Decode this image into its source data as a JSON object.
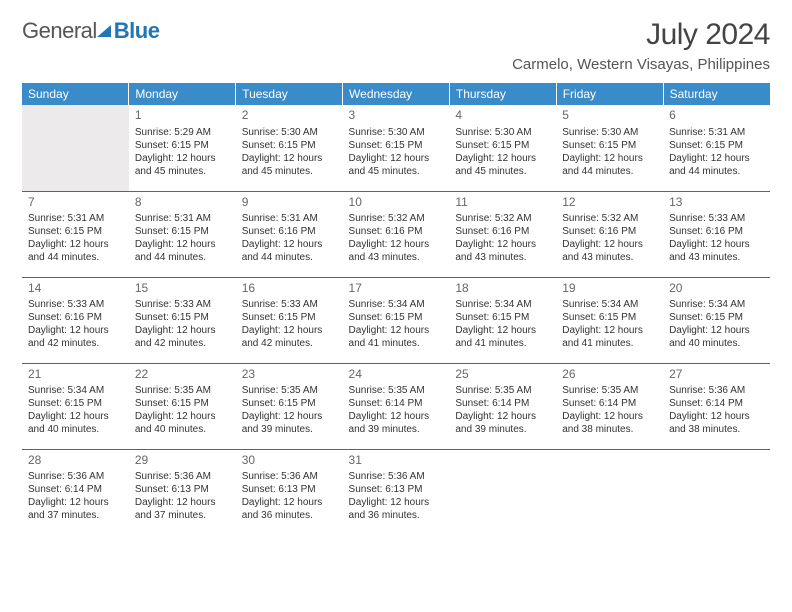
{
  "brand": {
    "part1": "General",
    "part2": "Blue"
  },
  "title": "July 2024",
  "location": "Carmelo, Western Visayas, Philippines",
  "colors": {
    "header_bg": "#3a8bc9",
    "header_text": "#ffffff",
    "rule": "#2f6fa3",
    "text": "#333333",
    "muted": "#666666",
    "background": "#ffffff",
    "blank_bg": "#eceaea"
  },
  "weekdays": [
    "Sunday",
    "Monday",
    "Tuesday",
    "Wednesday",
    "Thursday",
    "Friday",
    "Saturday"
  ],
  "layout": {
    "start_blank": 1,
    "days_in_month": 31
  },
  "days": {
    "1": {
      "sunrise": "5:29 AM",
      "sunset": "6:15 PM",
      "daylight": "12 hours and 45 minutes."
    },
    "2": {
      "sunrise": "5:30 AM",
      "sunset": "6:15 PM",
      "daylight": "12 hours and 45 minutes."
    },
    "3": {
      "sunrise": "5:30 AM",
      "sunset": "6:15 PM",
      "daylight": "12 hours and 45 minutes."
    },
    "4": {
      "sunrise": "5:30 AM",
      "sunset": "6:15 PM",
      "daylight": "12 hours and 45 minutes."
    },
    "5": {
      "sunrise": "5:30 AM",
      "sunset": "6:15 PM",
      "daylight": "12 hours and 44 minutes."
    },
    "6": {
      "sunrise": "5:31 AM",
      "sunset": "6:15 PM",
      "daylight": "12 hours and 44 minutes."
    },
    "7": {
      "sunrise": "5:31 AM",
      "sunset": "6:15 PM",
      "daylight": "12 hours and 44 minutes."
    },
    "8": {
      "sunrise": "5:31 AM",
      "sunset": "6:15 PM",
      "daylight": "12 hours and 44 minutes."
    },
    "9": {
      "sunrise": "5:31 AM",
      "sunset": "6:16 PM",
      "daylight": "12 hours and 44 minutes."
    },
    "10": {
      "sunrise": "5:32 AM",
      "sunset": "6:16 PM",
      "daylight": "12 hours and 43 minutes."
    },
    "11": {
      "sunrise": "5:32 AM",
      "sunset": "6:16 PM",
      "daylight": "12 hours and 43 minutes."
    },
    "12": {
      "sunrise": "5:32 AM",
      "sunset": "6:16 PM",
      "daylight": "12 hours and 43 minutes."
    },
    "13": {
      "sunrise": "5:33 AM",
      "sunset": "6:16 PM",
      "daylight": "12 hours and 43 minutes."
    },
    "14": {
      "sunrise": "5:33 AM",
      "sunset": "6:16 PM",
      "daylight": "12 hours and 42 minutes."
    },
    "15": {
      "sunrise": "5:33 AM",
      "sunset": "6:15 PM",
      "daylight": "12 hours and 42 minutes."
    },
    "16": {
      "sunrise": "5:33 AM",
      "sunset": "6:15 PM",
      "daylight": "12 hours and 42 minutes."
    },
    "17": {
      "sunrise": "5:34 AM",
      "sunset": "6:15 PM",
      "daylight": "12 hours and 41 minutes."
    },
    "18": {
      "sunrise": "5:34 AM",
      "sunset": "6:15 PM",
      "daylight": "12 hours and 41 minutes."
    },
    "19": {
      "sunrise": "5:34 AM",
      "sunset": "6:15 PM",
      "daylight": "12 hours and 41 minutes."
    },
    "20": {
      "sunrise": "5:34 AM",
      "sunset": "6:15 PM",
      "daylight": "12 hours and 40 minutes."
    },
    "21": {
      "sunrise": "5:34 AM",
      "sunset": "6:15 PM",
      "daylight": "12 hours and 40 minutes."
    },
    "22": {
      "sunrise": "5:35 AM",
      "sunset": "6:15 PM",
      "daylight": "12 hours and 40 minutes."
    },
    "23": {
      "sunrise": "5:35 AM",
      "sunset": "6:15 PM",
      "daylight": "12 hours and 39 minutes."
    },
    "24": {
      "sunrise": "5:35 AM",
      "sunset": "6:14 PM",
      "daylight": "12 hours and 39 minutes."
    },
    "25": {
      "sunrise": "5:35 AM",
      "sunset": "6:14 PM",
      "daylight": "12 hours and 39 minutes."
    },
    "26": {
      "sunrise": "5:35 AM",
      "sunset": "6:14 PM",
      "daylight": "12 hours and 38 minutes."
    },
    "27": {
      "sunrise": "5:36 AM",
      "sunset": "6:14 PM",
      "daylight": "12 hours and 38 minutes."
    },
    "28": {
      "sunrise": "5:36 AM",
      "sunset": "6:14 PM",
      "daylight": "12 hours and 37 minutes."
    },
    "29": {
      "sunrise": "5:36 AM",
      "sunset": "6:13 PM",
      "daylight": "12 hours and 37 minutes."
    },
    "30": {
      "sunrise": "5:36 AM",
      "sunset": "6:13 PM",
      "daylight": "12 hours and 36 minutes."
    },
    "31": {
      "sunrise": "5:36 AM",
      "sunset": "6:13 PM",
      "daylight": "12 hours and 36 minutes."
    }
  },
  "labels": {
    "sunrise": "Sunrise:",
    "sunset": "Sunset:",
    "daylight": "Daylight:"
  }
}
